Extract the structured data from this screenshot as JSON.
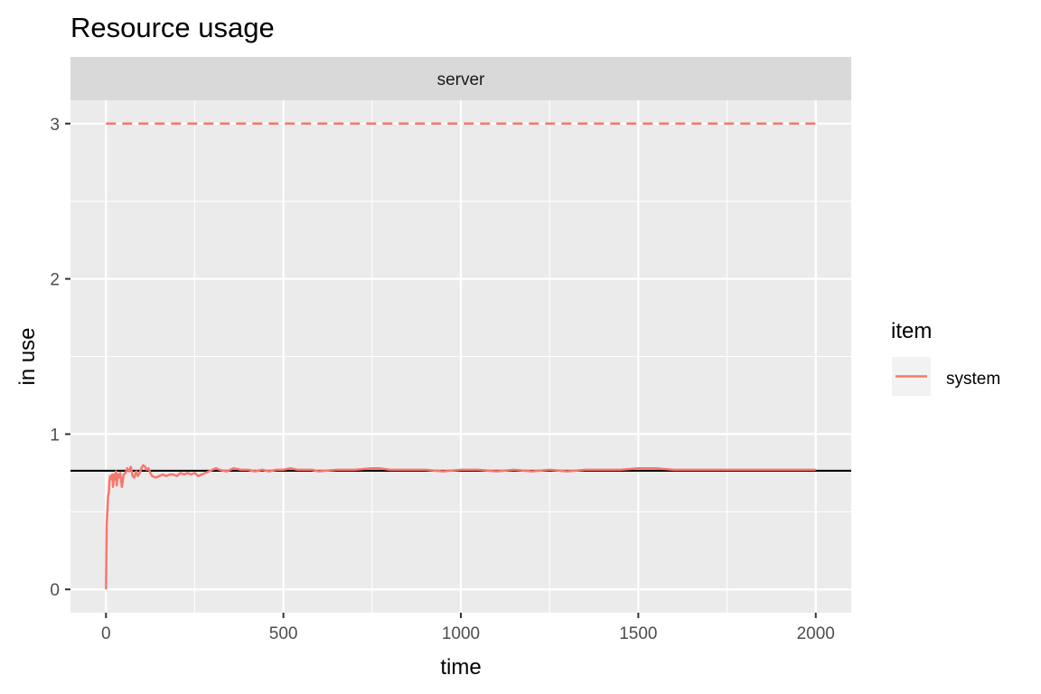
{
  "chart_data": {
    "type": "line",
    "title": "Resource usage",
    "facet": "server",
    "xlabel": "time",
    "ylabel": "in use",
    "xlim": [
      -100,
      2100
    ],
    "ylim": [
      -0.15,
      3.15
    ],
    "x_ticks": [
      0,
      500,
      1000,
      1500,
      2000
    ],
    "x_tick_labels": [
      "0",
      "500",
      "1000",
      "1500",
      "2000"
    ],
    "y_ticks": [
      0,
      1,
      2,
      3
    ],
    "y_tick_labels": [
      "0",
      "1",
      "2",
      "3"
    ],
    "x_minor_ticks": [
      250,
      750,
      1250,
      1750
    ],
    "y_minor_ticks": [
      0.5,
      1.5,
      2.5
    ],
    "grid": true,
    "legend": {
      "title": "item",
      "position": "right",
      "entries": [
        {
          "label": "system",
          "color": "#F8766D"
        }
      ]
    },
    "series": [
      {
        "name": "system",
        "color": "#F8766D",
        "x": [
          0,
          2,
          4,
          6,
          8,
          10,
          12,
          15,
          18,
          20,
          23,
          26,
          28,
          30,
          33,
          36,
          40,
          45,
          50,
          55,
          60,
          65,
          70,
          75,
          80,
          85,
          90,
          95,
          100,
          105,
          110,
          115,
          120,
          125,
          130,
          140,
          150,
          160,
          170,
          180,
          190,
          200,
          210,
          220,
          230,
          240,
          250,
          260,
          270,
          280,
          290,
          300,
          310,
          320,
          340,
          360,
          380,
          400,
          420,
          440,
          460,
          480,
          500,
          520,
          540,
          560,
          580,
          600,
          650,
          700,
          750,
          770,
          800,
          850,
          900,
          950,
          1000,
          1050,
          1100,
          1150,
          1200,
          1250,
          1300,
          1350,
          1400,
          1450,
          1500,
          1550,
          1600,
          1650,
          1700,
          1750,
          1800,
          1850,
          1900,
          1950,
          2000
        ],
        "y": [
          0.0,
          0.42,
          0.5,
          0.6,
          0.62,
          0.7,
          0.73,
          0.71,
          0.74,
          0.66,
          0.74,
          0.71,
          0.76,
          0.67,
          0.74,
          0.72,
          0.75,
          0.66,
          0.74,
          0.75,
          0.78,
          0.76,
          0.79,
          0.73,
          0.72,
          0.76,
          0.73,
          0.75,
          0.78,
          0.8,
          0.79,
          0.77,
          0.78,
          0.75,
          0.73,
          0.72,
          0.73,
          0.74,
          0.73,
          0.74,
          0.74,
          0.73,
          0.75,
          0.74,
          0.75,
          0.74,
          0.75,
          0.73,
          0.74,
          0.75,
          0.76,
          0.77,
          0.78,
          0.77,
          0.76,
          0.78,
          0.77,
          0.77,
          0.76,
          0.77,
          0.76,
          0.77,
          0.77,
          0.78,
          0.77,
          0.77,
          0.77,
          0.76,
          0.77,
          0.77,
          0.78,
          0.78,
          0.77,
          0.77,
          0.77,
          0.76,
          0.77,
          0.77,
          0.76,
          0.77,
          0.76,
          0.77,
          0.76,
          0.77,
          0.77,
          0.77,
          0.78,
          0.78,
          0.77,
          0.77,
          0.77,
          0.77,
          0.77,
          0.77,
          0.77,
          0.77,
          0.77
        ]
      }
    ],
    "reference_lines": [
      {
        "type": "hline",
        "y": 3,
        "style": "dashed",
        "color": "#F8766D"
      },
      {
        "type": "hline",
        "y": 0.764,
        "style": "solid",
        "color": "#000000"
      }
    ],
    "colors": {
      "panel_bg": "#EBEBEB",
      "strip_bg": "#D9D9D9",
      "grid": "#FFFFFF",
      "legend_key_bg": "#F2F2F2"
    }
  }
}
